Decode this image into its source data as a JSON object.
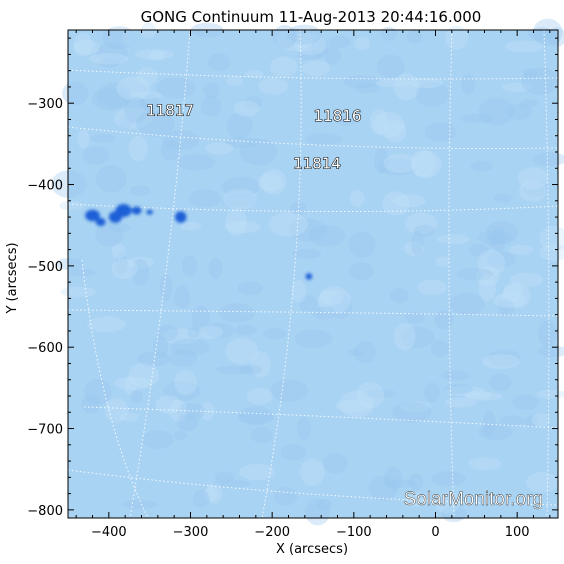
{
  "title": "GONG Continuum 11-Aug-2013 20:44:16.000",
  "x_axis": {
    "label": "X (arcsecs)",
    "range": [
      -450,
      150
    ],
    "ticks": [
      {
        "value": -400,
        "label": "−400"
      },
      {
        "value": -300,
        "label": "−300"
      },
      {
        "value": -200,
        "label": "−200"
      },
      {
        "value": -100,
        "label": "−100"
      },
      {
        "value": 0,
        "label": "0"
      },
      {
        "value": 100,
        "label": "100"
      }
    ]
  },
  "y_axis": {
    "label": "Y (arcsecs)",
    "range": [
      -810,
      -210
    ],
    "ticks": [
      {
        "value": -300,
        "label": "−300"
      },
      {
        "value": -400,
        "label": "−400"
      },
      {
        "value": -500,
        "label": "−500"
      },
      {
        "value": -600,
        "label": "−600"
      },
      {
        "value": -700,
        "label": "−700"
      },
      {
        "value": -800,
        "label": "−800"
      }
    ]
  },
  "active_regions": [
    {
      "label": "11817",
      "x": -325,
      "y": -315
    },
    {
      "label": "11816",
      "x": -120,
      "y": -322
    },
    {
      "label": "11814",
      "x": -145,
      "y": -380
    }
  ],
  "sunspots": [
    {
      "x": -420,
      "y": -438,
      "rx": 9,
      "ry": 7
    },
    {
      "x": -410,
      "y": -446,
      "rx": 6,
      "ry": 5
    },
    {
      "x": -392,
      "y": -440,
      "rx": 8,
      "ry": 7
    },
    {
      "x": -382,
      "y": -432,
      "rx": 10,
      "ry": 8
    },
    {
      "x": -366,
      "y": -432,
      "rx": 6,
      "ry": 5
    },
    {
      "x": -350,
      "y": -434,
      "rx": 4,
      "ry": 3
    },
    {
      "x": -312,
      "y": -440,
      "rx": 7,
      "ry": 7
    },
    {
      "x": -155,
      "y": -513,
      "rx": 4,
      "ry": 4
    }
  ],
  "watermark": "SolarMonitor.org",
  "colors": {
    "disk": "#a9d3f3",
    "sunspot": "#1a5fd6",
    "grid": "#ffffff",
    "frame": "#000000"
  }
}
